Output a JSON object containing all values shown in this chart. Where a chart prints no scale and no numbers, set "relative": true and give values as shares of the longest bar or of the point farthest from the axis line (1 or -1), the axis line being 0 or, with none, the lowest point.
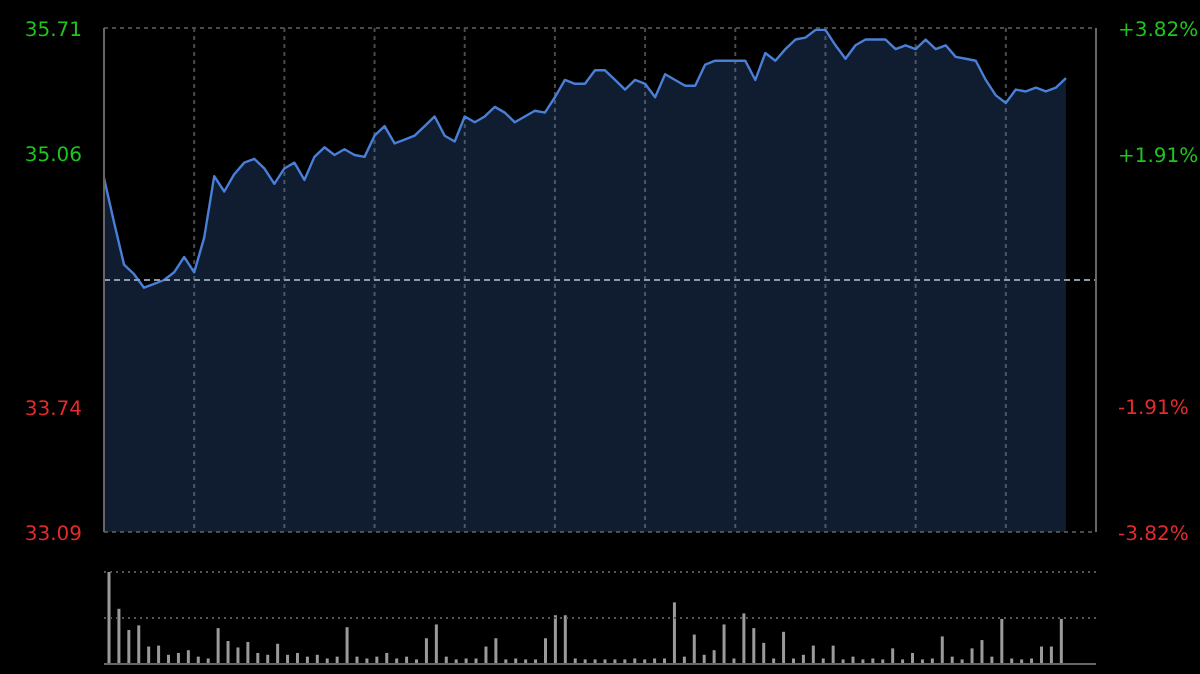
{
  "chart_data": [
    {
      "type": "area",
      "color": "#4a7fd8",
      "categories": [
        null,
        null,
        null,
        null,
        null,
        null,
        null,
        null,
        null,
        null,
        null,
        null,
        null,
        null,
        null,
        null,
        null,
        null,
        null,
        null,
        null,
        null,
        null,
        null,
        null,
        null,
        null,
        null,
        null,
        null,
        null,
        null,
        null,
        null,
        null,
        null,
        null,
        null,
        null,
        null,
        null,
        null,
        null,
        null,
        null,
        null,
        null,
        null,
        null,
        null,
        null,
        null,
        null,
        null,
        null,
        null,
        null,
        null,
        null,
        null,
        null,
        null,
        null,
        null,
        null,
        null,
        null,
        null,
        null,
        null,
        null,
        null,
        null,
        null,
        null,
        null,
        null,
        null,
        null,
        null,
        null,
        null,
        null,
        null,
        null,
        null,
        null,
        null,
        null,
        null,
        null,
        null,
        null,
        null,
        null,
        null,
        null,
        null,
        null,
        null
      ],
      "values": [
        34.93,
        34.7,
        34.48,
        34.43,
        34.36,
        34.38,
        34.4,
        34.44,
        34.52,
        34.44,
        34.62,
        34.94,
        34.86,
        34.95,
        35.01,
        35.03,
        34.98,
        34.9,
        34.98,
        35.01,
        34.92,
        35.04,
        35.09,
        35.05,
        35.08,
        35.05,
        35.04,
        35.15,
        35.2,
        35.11,
        35.13,
        35.15,
        35.2,
        35.25,
        35.15,
        35.12,
        35.25,
        35.22,
        35.25,
        35.3,
        35.27,
        35.22,
        35.25,
        35.28,
        35.27,
        35.35,
        35.44,
        35.42,
        35.42,
        35.49,
        35.49,
        35.44,
        35.39,
        35.44,
        35.42,
        35.35,
        35.47,
        35.44,
        35.41,
        35.41,
        35.52,
        35.54,
        35.54,
        35.54,
        35.54,
        35.44,
        35.58,
        35.54,
        35.6,
        35.65,
        35.66,
        35.7,
        35.7,
        35.62,
        35.55,
        35.62,
        35.65,
        35.65,
        35.65,
        35.6,
        35.62,
        35.6,
        35.65,
        35.6,
        35.62,
        35.56,
        35.55,
        35.54,
        35.44,
        35.36,
        35.32,
        35.39,
        35.38,
        35.4,
        35.38,
        35.4,
        35.45,
        null,
        null,
        null
      ],
      "ylim": [
        33.09,
        35.71
      ],
      "yticks": [
        33.09,
        33.74,
        35.06,
        35.71
      ],
      "y2lim": [
        -3.82,
        3.82
      ],
      "y2ticks": [
        {
          "value": -3.82,
          "label": "-3.82%"
        },
        {
          "value": -1.91,
          "label": "-1.91%"
        },
        {
          "value": 1.91,
          "label": "+1.91%"
        },
        {
          "value": 3.82,
          "label": "+3.82%"
        }
      ],
      "ref_lines": [
        {
          "axis": "y",
          "value": 34.4,
          "line_style": "dashed",
          "color": "#8a9bb0"
        }
      ],
      "grid": true,
      "legend": false
    },
    {
      "type": "bar",
      "relative": true,
      "color": "#9a9a9a",
      "legend": false,
      "ref_lines": [
        {
          "axis": "y",
          "value": 0.5,
          "line_style": "dotted",
          "color": "#555555"
        },
        {
          "axis": "y",
          "value": 1,
          "line_style": "dotted",
          "color": "#555555"
        }
      ],
      "categories": [
        null,
        null,
        null,
        null,
        null,
        null,
        null,
        null,
        null,
        null,
        null,
        null,
        null,
        null,
        null,
        null,
        null,
        null,
        null,
        null,
        null,
        null,
        null,
        null,
        null,
        null,
        null,
        null,
        null,
        null,
        null,
        null,
        null,
        null,
        null,
        null,
        null,
        null,
        null,
        null,
        null,
        null,
        null,
        null,
        null,
        null,
        null,
        null,
        null,
        null,
        null,
        null,
        null,
        null,
        null,
        null,
        null,
        null,
        null,
        null,
        null,
        null,
        null,
        null,
        null,
        null,
        null,
        null,
        null,
        null,
        null,
        null,
        null,
        null,
        null,
        null,
        null,
        null,
        null,
        null,
        null,
        null,
        null,
        null,
        null,
        null,
        null,
        null,
        null,
        null,
        null,
        null,
        null,
        null,
        null,
        null,
        null,
        null,
        null,
        null
      ],
      "values": [
        1.0,
        0.6,
        0.37,
        0.42,
        0.19,
        0.2,
        0.1,
        0.12,
        0.15,
        0.08,
        0.06,
        0.39,
        0.25,
        0.18,
        0.24,
        0.12,
        0.1,
        0.22,
        0.1,
        0.12,
        0.08,
        0.1,
        0.06,
        0.08,
        0.4,
        0.08,
        0.06,
        0.08,
        0.12,
        0.06,
        0.08,
        0.05,
        0.28,
        0.43,
        0.08,
        0.05,
        0.06,
        0.06,
        0.19,
        0.28,
        0.05,
        0.06,
        0.05,
        0.05,
        0.28,
        0.53,
        0.53,
        0.06,
        0.05,
        0.05,
        0.05,
        0.05,
        0.05,
        0.06,
        0.05,
        0.06,
        0.06,
        0.67,
        0.08,
        0.32,
        0.1,
        0.15,
        0.43,
        0.06,
        0.55,
        0.39,
        0.23,
        0.06,
        0.35,
        0.06,
        0.1,
        0.2,
        0.06,
        0.2,
        0.05,
        0.08,
        0.05,
        0.06,
        0.05,
        0.17,
        0.05,
        0.12,
        0.05,
        0.06,
        0.3,
        0.08,
        0.05,
        0.17,
        0.26,
        0.08,
        0.49,
        0.06,
        0.05,
        0.06,
        0.19,
        0.19,
        0.49,
        null,
        null,
        null
      ]
    }
  ]
}
